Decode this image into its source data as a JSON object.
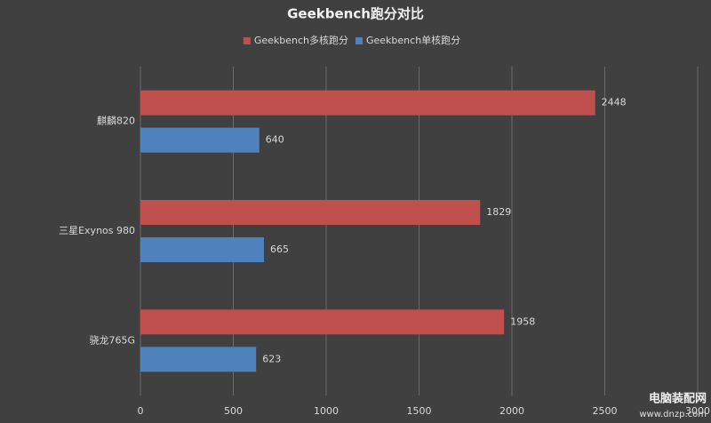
{
  "chart_data": {
    "type": "barh",
    "title": "Geekbench跑分对比",
    "categories": [
      "麒麟820",
      "三星Exynos 980",
      "骁龙765G"
    ],
    "series": [
      {
        "name": "Geekbench多核跑分",
        "color": "#c0504d",
        "values": [
          2448,
          1829,
          1958
        ]
      },
      {
        "name": "Geekbench单核跑分",
        "color": "#4f81bd",
        "values": [
          640,
          665,
          623
        ]
      }
    ],
    "xlim": [
      0,
      3000
    ],
    "xticks": [
      0,
      500,
      1000,
      1500,
      2000,
      2500,
      3000
    ],
    "grid": true,
    "legend": "top"
  },
  "watermark": {
    "site": "电脑装配网",
    "url": "www.dnzp.com"
  }
}
